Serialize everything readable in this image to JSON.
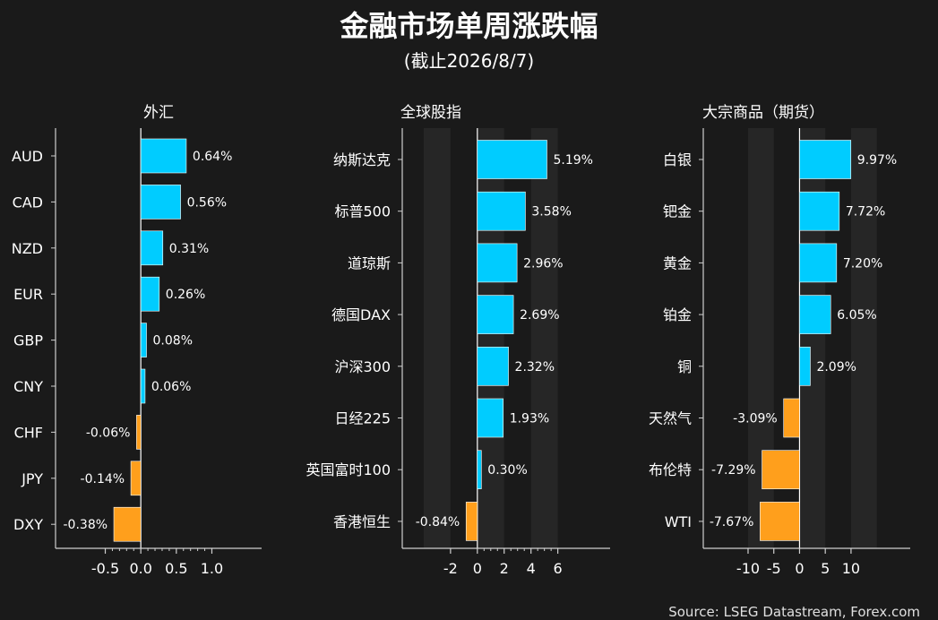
{
  "title": "金融市场单周涨跌幅",
  "subtitle": "(截止2026/8/7)",
  "source": "Source: LSEG Datastream, Forex.com",
  "colors": {
    "positive": "#00ccff",
    "negative": "#ff9f1c",
    "background": "#1a1a1a",
    "band": "#262626"
  },
  "chart_data": [
    {
      "type": "bar",
      "orientation": "horizontal",
      "title": "外汇",
      "categories": [
        "AUD",
        "CAD",
        "NZD",
        "EUR",
        "GBP",
        "CNY",
        "CHF",
        "JPY",
        "DXY"
      ],
      "values": [
        0.64,
        0.56,
        0.31,
        0.26,
        0.08,
        0.06,
        -0.06,
        -0.14,
        -0.38
      ],
      "value_labels": [
        "0.64%",
        "0.56%",
        "0.31%",
        "0.26%",
        "0.08%",
        "0.06%",
        "-0.06%",
        "-0.14%",
        "-0.38%"
      ],
      "xticks": [
        -0.5,
        0.0,
        0.5,
        1.0
      ],
      "xtick_labels": [
        "-0.5",
        "0.0",
        "0.5",
        "1.0"
      ],
      "minor_ticks": [
        -0.4,
        -0.3,
        -0.2,
        -0.1,
        0.1,
        0.2,
        0.3,
        0.4,
        0.6,
        0.7,
        0.8,
        0.9
      ],
      "xlim": [
        -1.2,
        1.7
      ],
      "bands": []
    },
    {
      "type": "bar",
      "orientation": "horizontal",
      "title": "全球股指",
      "categories": [
        "纳斯达克",
        "标普500",
        "道琼斯",
        "德国DAX",
        "沪深300",
        "日经225",
        "英国富时100",
        "香港恒生"
      ],
      "values": [
        5.19,
        3.58,
        2.96,
        2.69,
        2.32,
        1.93,
        0.3,
        -0.84
      ],
      "value_labels": [
        "5.19%",
        "3.58%",
        "2.96%",
        "2.69%",
        "2.32%",
        "1.93%",
        "0.30%",
        "-0.84%"
      ],
      "xticks": [
        -2,
        0,
        2,
        4,
        6
      ],
      "xtick_labels": [
        "-2",
        "0",
        "2",
        "4",
        "6"
      ],
      "minor_ticks": [
        0.5,
        1,
        1.5,
        2.5,
        3,
        3.5,
        4.5,
        5,
        5.5
      ],
      "xlim": [
        -5.6,
        9.9
      ],
      "bands": [
        [
          -4,
          -2
        ],
        [
          0,
          2
        ],
        [
          4,
          6
        ]
      ]
    },
    {
      "type": "bar",
      "orientation": "horizontal",
      "title": "大宗商品（期货）",
      "categories": [
        "白银",
        "钯金",
        "黄金",
        "铂金",
        "铜",
        "天然气",
        "布伦特",
        "WTI"
      ],
      "values": [
        9.97,
        7.72,
        7.2,
        6.05,
        2.09,
        -3.09,
        -7.29,
        -7.67
      ],
      "value_labels": [
        "9.97%",
        "7.72%",
        "7.20%",
        "6.05%",
        "2.09%",
        "-3.09%",
        "-7.29%",
        "-7.67%"
      ],
      "xticks": [
        -10,
        -5,
        0,
        5,
        10
      ],
      "xtick_labels": [
        "-10",
        "-5",
        "0",
        "5",
        "10"
      ],
      "minor_ticks": [],
      "xlim": [
        -18.7,
        21.5
      ],
      "bands": [
        [
          -10,
          -5
        ],
        [
          0,
          5
        ],
        [
          10,
          15
        ]
      ]
    }
  ]
}
